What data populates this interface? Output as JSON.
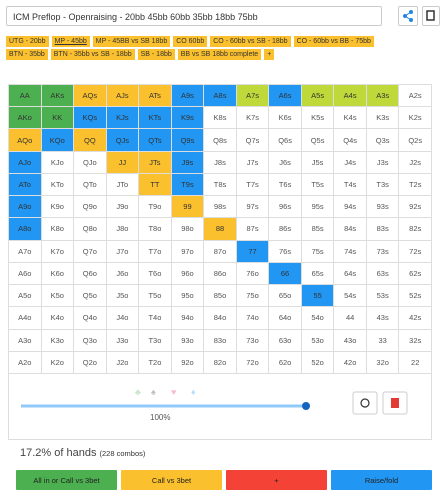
{
  "header": {
    "title": "ICM Preflop - Openraising - 20bb 45bb 60bb 35bb 18bb 75bb"
  },
  "tabs": [
    "UTG - 20bb",
    "MP - 45bb",
    "MP - 45BB vs SB 18bb",
    "CO 60bb",
    "CO - 60bb vs SB - 18bb",
    "CO - 60bb vs BB - 75bb",
    "BTN - 35bb",
    "BTN - 35bb vs SB - 18bb",
    "SB - 18bb",
    "BB vs SB 18bb complete",
    "+"
  ],
  "active_tab": 1,
  "grid": {
    "rows": [
      [
        "AA",
        "AKs",
        "AQs",
        "AJs",
        "ATs",
        "A9s",
        "A8s",
        "A7s",
        "A6s",
        "A5s",
        "A4s",
        "A3s",
        "A2s"
      ],
      [
        "AKo",
        "KK",
        "KQs",
        "KJs",
        "KTs",
        "K9s",
        "K8s",
        "K7s",
        "K6s",
        "K5s",
        "K4s",
        "K3s",
        "K2s"
      ],
      [
        "AQo",
        "KQo",
        "QQ",
        "QJs",
        "QTs",
        "Q9s",
        "Q8s",
        "Q7s",
        "Q6s",
        "Q5s",
        "Q4s",
        "Q3s",
        "Q2s"
      ],
      [
        "AJo",
        "KJo",
        "QJo",
        "JJ",
        "JTs",
        "J9s",
        "J8s",
        "J7s",
        "J6s",
        "J5s",
        "J4s",
        "J3s",
        "J2s"
      ],
      [
        "ATo",
        "KTo",
        "QTo",
        "JTo",
        "TT",
        "T9s",
        "T8s",
        "T7s",
        "T6s",
        "T5s",
        "T4s",
        "T3s",
        "T2s"
      ],
      [
        "A9o",
        "K9o",
        "Q9o",
        "J9o",
        "T9o",
        "99",
        "98s",
        "97s",
        "96s",
        "95s",
        "94s",
        "93s",
        "92s"
      ],
      [
        "A8o",
        "K8o",
        "Q8o",
        "J8o",
        "T8o",
        "98o",
        "88",
        "87s",
        "86s",
        "85s",
        "84s",
        "83s",
        "82s"
      ],
      [
        "A7o",
        "K7o",
        "Q7o",
        "J7o",
        "T7o",
        "97o",
        "87o",
        "77",
        "76s",
        "75s",
        "74s",
        "73s",
        "72s"
      ],
      [
        "A6o",
        "K6o",
        "Q6o",
        "J6o",
        "T6o",
        "96o",
        "86o",
        "76o",
        "66",
        "65s",
        "64s",
        "63s",
        "62s"
      ],
      [
        "A5o",
        "K5o",
        "Q5o",
        "J5o",
        "T5o",
        "95o",
        "85o",
        "75o",
        "65o",
        "55",
        "54s",
        "53s",
        "52s"
      ],
      [
        "A4o",
        "K4o",
        "Q4o",
        "J4o",
        "T4o",
        "94o",
        "84o",
        "74o",
        "64o",
        "54o",
        "44",
        "43s",
        "42s"
      ],
      [
        "A3o",
        "K3o",
        "Q3o",
        "J3o",
        "T3o",
        "93o",
        "83o",
        "73o",
        "63o",
        "53o",
        "43o",
        "33",
        "32s"
      ],
      [
        "A2o",
        "K2o",
        "Q2o",
        "J2o",
        "T2o",
        "92o",
        "82o",
        "72o",
        "62o",
        "52o",
        "42o",
        "32o",
        "22"
      ]
    ],
    "colors": [
      [
        "#4caf50",
        "#4caf50",
        "#fbc02d",
        "#fbc02d",
        "#fbc02d",
        "#2196f3",
        "#2196f3",
        "#c0d93a",
        "#2196f3",
        "#c0d93a",
        "#c0d93a",
        "#c0d93a",
        "#ffffff"
      ],
      [
        "#4caf50",
        "#4caf50",
        "#2196f3",
        "#2196f3",
        "#2196f3",
        "#2196f3",
        "#ffffff",
        "#ffffff",
        "#ffffff",
        "#ffffff",
        "#ffffff",
        "#ffffff",
        "#ffffff"
      ],
      [
        "#fbc02d",
        "#2196f3",
        "#fbc02d",
        "#2196f3",
        "#2196f3",
        "#2196f3",
        "#ffffff",
        "#ffffff",
        "#ffffff",
        "#ffffff",
        "#ffffff",
        "#ffffff",
        "#ffffff"
      ],
      [
        "#2196f3",
        "#ffffff",
        "#ffffff",
        "#fbc02d",
        "#fbc02d",
        "#2196f3",
        "#ffffff",
        "#ffffff",
        "#ffffff",
        "#ffffff",
        "#ffffff",
        "#ffffff",
        "#ffffff"
      ],
      [
        "#2196f3",
        "#ffffff",
        "#ffffff",
        "#ffffff",
        "#fbc02d",
        "#2196f3",
        "#ffffff",
        "#ffffff",
        "#ffffff",
        "#ffffff",
        "#ffffff",
        "#ffffff",
        "#ffffff"
      ],
      [
        "#2196f3",
        "#ffffff",
        "#ffffff",
        "#ffffff",
        "#ffffff",
        "#fbc02d",
        "#ffffff",
        "#ffffff",
        "#ffffff",
        "#ffffff",
        "#ffffff",
        "#ffffff",
        "#ffffff"
      ],
      [
        "#2196f3",
        "#ffffff",
        "#ffffff",
        "#ffffff",
        "#ffffff",
        "#ffffff",
        "#fbc02d",
        "#ffffff",
        "#ffffff",
        "#ffffff",
        "#ffffff",
        "#ffffff",
        "#ffffff"
      ],
      [
        "#ffffff",
        "#ffffff",
        "#ffffff",
        "#ffffff",
        "#ffffff",
        "#ffffff",
        "#ffffff",
        "#2196f3",
        "#ffffff",
        "#ffffff",
        "#ffffff",
        "#ffffff",
        "#ffffff"
      ],
      [
        "#ffffff",
        "#ffffff",
        "#ffffff",
        "#ffffff",
        "#ffffff",
        "#ffffff",
        "#ffffff",
        "#ffffff",
        "#2196f3",
        "#ffffff",
        "#ffffff",
        "#ffffff",
        "#ffffff"
      ],
      [
        "#ffffff",
        "#ffffff",
        "#ffffff",
        "#ffffff",
        "#ffffff",
        "#ffffff",
        "#ffffff",
        "#ffffff",
        "#ffffff",
        "#2196f3",
        "#ffffff",
        "#ffffff",
        "#ffffff"
      ],
      [
        "#ffffff",
        "#ffffff",
        "#ffffff",
        "#ffffff",
        "#ffffff",
        "#ffffff",
        "#ffffff",
        "#ffffff",
        "#ffffff",
        "#ffffff",
        "#ffffff",
        "#ffffff",
        "#ffffff"
      ],
      [
        "#ffffff",
        "#ffffff",
        "#ffffff",
        "#ffffff",
        "#ffffff",
        "#ffffff",
        "#ffffff",
        "#ffffff",
        "#ffffff",
        "#ffffff",
        "#ffffff",
        "#ffffff",
        "#ffffff"
      ],
      [
        "#ffffff",
        "#ffffff",
        "#ffffff",
        "#ffffff",
        "#ffffff",
        "#ffffff",
        "#ffffff",
        "#ffffff",
        "#ffffff",
        "#ffffff",
        "#ffffff",
        "#ffffff",
        "#ffffff"
      ]
    ]
  },
  "slider_label": "100%",
  "summary": {
    "hands": "17.2% of hands",
    "combos": "(228 combos)"
  },
  "actions": [
    {
      "label": "All in or Call vs 3bet",
      "color": "#4caf50"
    },
    {
      "label": "Call vs 3bet",
      "color": "#fbc02d"
    },
    {
      "label": "+",
      "color": "#f44336"
    },
    {
      "label": "Raise/fold",
      "color": "#2196f3"
    }
  ]
}
